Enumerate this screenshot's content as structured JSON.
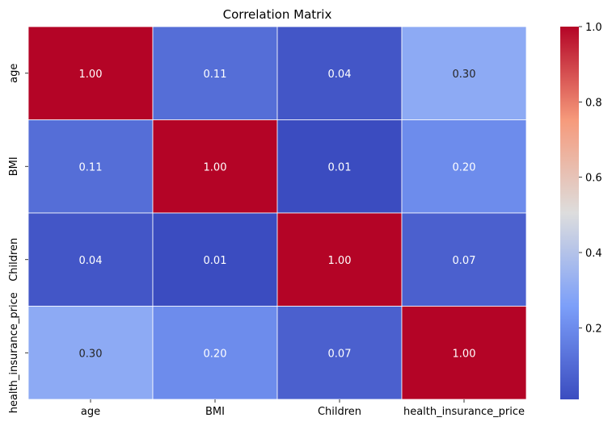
{
  "chart_data": {
    "type": "heatmap",
    "title": "Correlation Matrix",
    "xlabel": "",
    "ylabel": "",
    "x_categories": [
      "age",
      "BMI",
      "Children",
      "health_insurance_price"
    ],
    "y_categories": [
      "age",
      "BMI",
      "Children",
      "health_insurance_price"
    ],
    "values": [
      [
        1.0,
        0.11,
        0.04,
        0.3
      ],
      [
        0.11,
        1.0,
        0.01,
        0.2
      ],
      [
        0.04,
        0.01,
        1.0,
        0.07
      ],
      [
        0.3,
        0.2,
        0.07,
        1.0
      ]
    ],
    "value_format": "2 decimals",
    "colormap": "coolwarm",
    "color_range": [
      0.01,
      1.0
    ],
    "colorbar": {
      "ticks": [
        0.2,
        0.4,
        0.6,
        0.8,
        1.0
      ],
      "tick_labels": [
        "0.2",
        "0.4",
        "0.6",
        "0.8",
        "1.0"
      ]
    },
    "cell_border_color": "#ffffff",
    "annotations": true
  }
}
